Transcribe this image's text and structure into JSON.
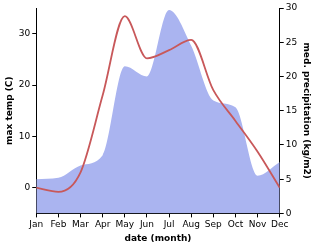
{
  "chart_data": {
    "type": "line",
    "x_label": "date (month)",
    "y_label": "max temp (C)",
    "y2_label": "med. precipitation (kg/m2)",
    "categories": [
      "Jan",
      "Feb",
      "Mar",
      "Apr",
      "May",
      "Jun",
      "Jul",
      "Aug",
      "Sep",
      "Oct",
      "Nov",
      "Dec"
    ],
    "ylim": [
      -5,
      35
    ],
    "yticks": [
      0,
      10,
      20,
      30
    ],
    "y2lim": [
      0,
      30
    ],
    "y2ticks": [
      0,
      5,
      10,
      15,
      20,
      25,
      30
    ],
    "grid": false,
    "series": [
      {
        "name": "med. precipitation",
        "type": "area",
        "axis": "y2",
        "color": "#aab4f0",
        "values": [
          5,
          5.2,
          7,
          8.5,
          21.5,
          20,
          29.7,
          24.5,
          16.5,
          15.5,
          5.5,
          7.5
        ]
      },
      {
        "name": "max temp",
        "type": "line",
        "axis": "y",
        "color": "#c8585a",
        "values": [
          0,
          -0.8,
          3,
          18,
          33.4,
          25.2,
          26.8,
          28.8,
          19,
          13,
          7,
          0
        ]
      }
    ]
  }
}
